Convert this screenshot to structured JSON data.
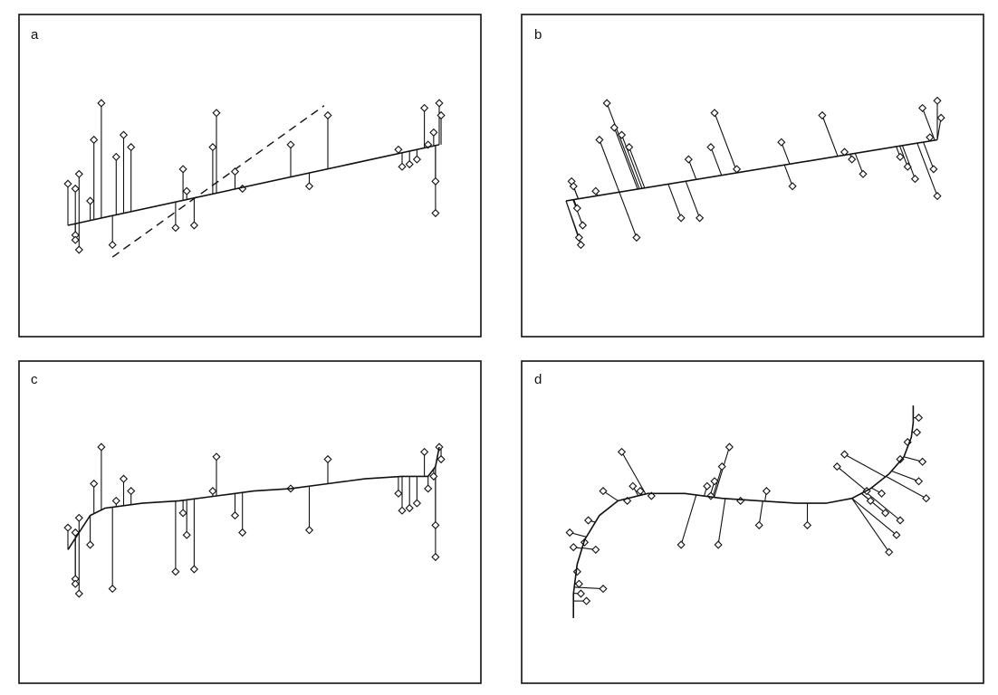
{
  "colors": {
    "ink": "#111111",
    "background": "#ffffff"
  },
  "chart_data": [
    {
      "type": "scatter",
      "panel": "a",
      "title": "",
      "xlabel": "",
      "ylabel": "",
      "xlim": [
        0,
        1
      ],
      "ylim": [
        0,
        1
      ],
      "grid": false,
      "curve_type": "line",
      "fit_line": {
        "from": [
          0.0,
          0.3
        ],
        "to": [
          1.0,
          0.63
        ]
      },
      "dashed_line": {
        "from": [
          0.12,
          0.17
        ],
        "to": [
          0.69,
          0.79
        ]
      },
      "points": [
        [
          0.0,
          0.47
        ],
        [
          0.02,
          0.45
        ],
        [
          0.02,
          0.26
        ],
        [
          0.03,
          0.51
        ],
        [
          0.03,
          0.2
        ],
        [
          0.02,
          0.24
        ],
        [
          0.06,
          0.4
        ],
        [
          0.07,
          0.65
        ],
        [
          0.09,
          0.8
        ],
        [
          0.13,
          0.58
        ],
        [
          0.12,
          0.22
        ],
        [
          0.15,
          0.67
        ],
        [
          0.17,
          0.62
        ],
        [
          0.29,
          0.29
        ],
        [
          0.31,
          0.53
        ],
        [
          0.32,
          0.44
        ],
        [
          0.34,
          0.3
        ],
        [
          0.39,
          0.62
        ],
        [
          0.4,
          0.76
        ],
        [
          0.45,
          0.52
        ],
        [
          0.47,
          0.45
        ],
        [
          0.6,
          0.63
        ],
        [
          0.65,
          0.46
        ],
        [
          0.7,
          0.75
        ],
        [
          0.89,
          0.61
        ],
        [
          0.9,
          0.54
        ],
        [
          0.92,
          0.55
        ],
        [
          0.94,
          0.57
        ],
        [
          0.96,
          0.78
        ],
        [
          0.97,
          0.63
        ],
        [
          0.985,
          0.68
        ],
        [
          0.99,
          0.48
        ],
        [
          0.99,
          0.35
        ],
        [
          1.0,
          0.8
        ],
        [
          1.005,
          0.75
        ]
      ]
    },
    {
      "type": "scatter",
      "panel": "b",
      "title": "",
      "xlabel": "",
      "ylabel": "",
      "xlim": [
        0,
        1
      ],
      "ylim": [
        0,
        1
      ],
      "grid": false,
      "curve_type": "line",
      "fit_line": {
        "from": [
          0.0,
          0.4
        ],
        "to": [
          1.0,
          0.65
        ]
      },
      "points": [
        [
          0.015,
          0.48
        ],
        [
          0.02,
          0.46
        ],
        [
          0.03,
          0.37
        ],
        [
          0.035,
          0.25
        ],
        [
          0.04,
          0.22
        ],
        [
          0.045,
          0.3
        ],
        [
          0.08,
          0.44
        ],
        [
          0.09,
          0.65
        ],
        [
          0.11,
          0.8
        ],
        [
          0.13,
          0.7
        ],
        [
          0.15,
          0.67
        ],
        [
          0.17,
          0.62
        ],
        [
          0.19,
          0.25
        ],
        [
          0.31,
          0.33
        ],
        [
          0.33,
          0.57
        ],
        [
          0.36,
          0.33
        ],
        [
          0.39,
          0.62
        ],
        [
          0.4,
          0.76
        ],
        [
          0.46,
          0.53
        ],
        [
          0.58,
          0.64
        ],
        [
          0.61,
          0.46
        ],
        [
          0.69,
          0.75
        ],
        [
          0.75,
          0.6
        ],
        [
          0.77,
          0.57
        ],
        [
          0.8,
          0.51
        ],
        [
          0.9,
          0.58
        ],
        [
          0.92,
          0.54
        ],
        [
          0.94,
          0.49
        ],
        [
          0.96,
          0.78
        ],
        [
          0.98,
          0.66
        ],
        [
          1.0,
          0.81
        ],
        [
          1.01,
          0.74
        ],
        [
          0.99,
          0.53
        ],
        [
          1.0,
          0.42
        ]
      ]
    },
    {
      "type": "scatter",
      "panel": "c",
      "title": "",
      "xlabel": "",
      "ylabel": "",
      "xlim": [
        0,
        1
      ],
      "ylim": [
        0,
        1
      ],
      "grid": false,
      "curve_type": "cubic",
      "fit_curve": [
        [
          0.0,
          0.38
        ],
        [
          0.03,
          0.45
        ],
        [
          0.06,
          0.52
        ],
        [
          0.1,
          0.55
        ],
        [
          0.2,
          0.57
        ],
        [
          0.3,
          0.58
        ],
        [
          0.4,
          0.6
        ],
        [
          0.5,
          0.62
        ],
        [
          0.6,
          0.63
        ],
        [
          0.7,
          0.65
        ],
        [
          0.8,
          0.67
        ],
        [
          0.9,
          0.68
        ],
        [
          0.97,
          0.68
        ],
        [
          0.99,
          0.72
        ],
        [
          1.0,
          0.8
        ]
      ],
      "points": [
        [
          0.0,
          0.47
        ],
        [
          0.02,
          0.45
        ],
        [
          0.02,
          0.26
        ],
        [
          0.03,
          0.51
        ],
        [
          0.03,
          0.2
        ],
        [
          0.02,
          0.24
        ],
        [
          0.06,
          0.4
        ],
        [
          0.07,
          0.65
        ],
        [
          0.09,
          0.8
        ],
        [
          0.13,
          0.58
        ],
        [
          0.12,
          0.22
        ],
        [
          0.15,
          0.67
        ],
        [
          0.17,
          0.62
        ],
        [
          0.29,
          0.29
        ],
        [
          0.31,
          0.53
        ],
        [
          0.32,
          0.44
        ],
        [
          0.34,
          0.3
        ],
        [
          0.39,
          0.62
        ],
        [
          0.4,
          0.76
        ],
        [
          0.45,
          0.52
        ],
        [
          0.47,
          0.45
        ],
        [
          0.6,
          0.63
        ],
        [
          0.65,
          0.46
        ],
        [
          0.7,
          0.75
        ],
        [
          0.89,
          0.61
        ],
        [
          0.9,
          0.54
        ],
        [
          0.92,
          0.55
        ],
        [
          0.94,
          0.57
        ],
        [
          0.96,
          0.78
        ],
        [
          0.97,
          0.63
        ],
        [
          0.985,
          0.68
        ],
        [
          0.99,
          0.48
        ],
        [
          0.99,
          0.35
        ],
        [
          1.0,
          0.8
        ],
        [
          1.005,
          0.75
        ]
      ]
    },
    {
      "type": "scatter",
      "panel": "d",
      "title": "",
      "xlabel": "",
      "ylabel": "",
      "xlim": [
        0,
        1
      ],
      "ylim": [
        0,
        1
      ],
      "grid": false,
      "curve_type": "principal-curve",
      "fit_curve": [
        [
          0.02,
          0.1
        ],
        [
          0.02,
          0.2
        ],
        [
          0.03,
          0.32
        ],
        [
          0.05,
          0.42
        ],
        [
          0.09,
          0.52
        ],
        [
          0.14,
          0.58
        ],
        [
          0.22,
          0.61
        ],
        [
          0.32,
          0.61
        ],
        [
          0.42,
          0.59
        ],
        [
          0.52,
          0.58
        ],
        [
          0.62,
          0.57
        ],
        [
          0.7,
          0.57
        ],
        [
          0.77,
          0.59
        ],
        [
          0.82,
          0.63
        ],
        [
          0.87,
          0.69
        ],
        [
          0.91,
          0.76
        ],
        [
          0.93,
          0.84
        ],
        [
          0.935,
          0.9
        ],
        [
          0.935,
          0.97
        ]
      ],
      "points": [
        [
          0.03,
          0.29
        ],
        [
          0.035,
          0.24
        ],
        [
          0.04,
          0.2
        ],
        [
          0.055,
          0.17
        ],
        [
          0.1,
          0.22
        ],
        [
          0.01,
          0.45
        ],
        [
          0.02,
          0.39
        ],
        [
          0.05,
          0.41
        ],
        [
          0.08,
          0.38
        ],
        [
          0.06,
          0.5
        ],
        [
          0.1,
          0.62
        ],
        [
          0.15,
          0.78
        ],
        [
          0.165,
          0.58
        ],
        [
          0.18,
          0.64
        ],
        [
          0.2,
          0.62
        ],
        [
          0.23,
          0.6
        ],
        [
          0.38,
          0.64
        ],
        [
          0.39,
          0.6
        ],
        [
          0.4,
          0.66
        ],
        [
          0.42,
          0.72
        ],
        [
          0.44,
          0.8
        ],
        [
          0.47,
          0.58
        ],
        [
          0.31,
          0.4
        ],
        [
          0.41,
          0.4
        ],
        [
          0.52,
          0.48
        ],
        [
          0.54,
          0.62
        ],
        [
          0.65,
          0.48
        ],
        [
          0.73,
          0.72
        ],
        [
          0.75,
          0.77
        ],
        [
          0.81,
          0.62
        ],
        [
          0.82,
          0.58
        ],
        [
          0.85,
          0.61
        ],
        [
          0.86,
          0.53
        ],
        [
          0.9,
          0.5
        ],
        [
          0.89,
          0.44
        ],
        [
          0.87,
          0.37
        ],
        [
          0.9,
          0.75
        ],
        [
          0.92,
          0.82
        ],
        [
          0.945,
          0.86
        ],
        [
          0.95,
          0.92
        ],
        [
          0.96,
          0.74
        ],
        [
          0.95,
          0.66
        ],
        [
          0.97,
          0.59
        ]
      ]
    }
  ]
}
